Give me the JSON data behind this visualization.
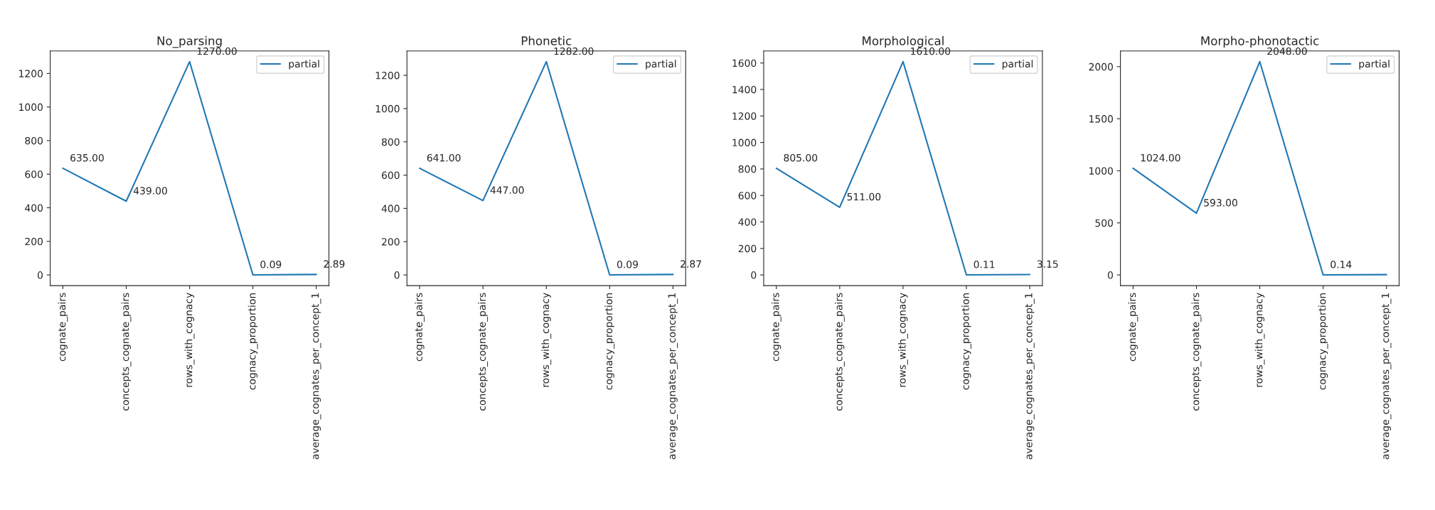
{
  "chart_data": [
    {
      "type": "line",
      "title": "No_parsing",
      "categories": [
        "cognate_pairs",
        "concepts_cognate_pairs",
        "rows_with_cognacy",
        "cognacy_proportion",
        "average_cognates_per_concept_1"
      ],
      "series": [
        {
          "name": "partial",
          "color": "#1f77b4",
          "values": [
            635,
            439,
            1270,
            0.09,
            2.89
          ],
          "value_labels": [
            "635.00",
            "439.00",
            "1270.00",
            "0.09",
            "2.89"
          ]
        }
      ],
      "ylim": [
        -63.5,
        1333.5
      ],
      "yticks": [
        0,
        200,
        400,
        600,
        800,
        1000,
        1200
      ],
      "legend": "top right",
      "grid": false
    },
    {
      "type": "line",
      "title": "Phonetic",
      "categories": [
        "cognate_pairs",
        "concepts_cognate_pairs",
        "rows_with_cognacy",
        "cognacy_proportion",
        "average_cognates_per_concept_1"
      ],
      "series": [
        {
          "name": "partial",
          "color": "#1f77b4",
          "values": [
            641,
            447,
            1282,
            0.09,
            2.87
          ],
          "value_labels": [
            "641.00",
            "447.00",
            "1282.00",
            "0.09",
            "2.87"
          ]
        }
      ],
      "ylim": [
        -64.1,
        1346.1
      ],
      "yticks": [
        0,
        200,
        400,
        600,
        800,
        1000,
        1200
      ],
      "legend": "top right",
      "grid": false
    },
    {
      "type": "line",
      "title": "Morphological",
      "categories": [
        "cognate_pairs",
        "concepts_cognate_pairs",
        "rows_with_cognacy",
        "cognacy_proportion",
        "average_cognates_per_concept_1"
      ],
      "series": [
        {
          "name": "partial",
          "color": "#1f77b4",
          "values": [
            805,
            511,
            1610,
            0.11,
            3.15
          ],
          "value_labels": [
            "805.00",
            "511.00",
            "1610.00",
            "0.11",
            "3.15"
          ]
        }
      ],
      "ylim": [
        -80.5,
        1690.5
      ],
      "yticks": [
        0,
        200,
        400,
        600,
        800,
        1000,
        1200,
        1400,
        1600
      ],
      "legend": "top right",
      "grid": false
    },
    {
      "type": "line",
      "title": "Morpho-phonotactic",
      "categories": [
        "cognate_pairs",
        "concepts_cognate_pairs",
        "rows_with_cognacy",
        "cognacy_proportion",
        "average_cognates_per_concept_1"
      ],
      "series": [
        {
          "name": "partial",
          "color": "#1f77b4",
          "values": [
            1024,
            593,
            2048,
            0.14,
            3
          ],
          "value_labels": [
            "1024.00",
            "593.00",
            "2048.00",
            "0.14",
            null
          ]
        }
      ],
      "ylim": [
        -102.4,
        2150.4
      ],
      "yticks": [
        0,
        500,
        1000,
        1500,
        2000
      ],
      "legend": "top right",
      "grid": false
    }
  ]
}
